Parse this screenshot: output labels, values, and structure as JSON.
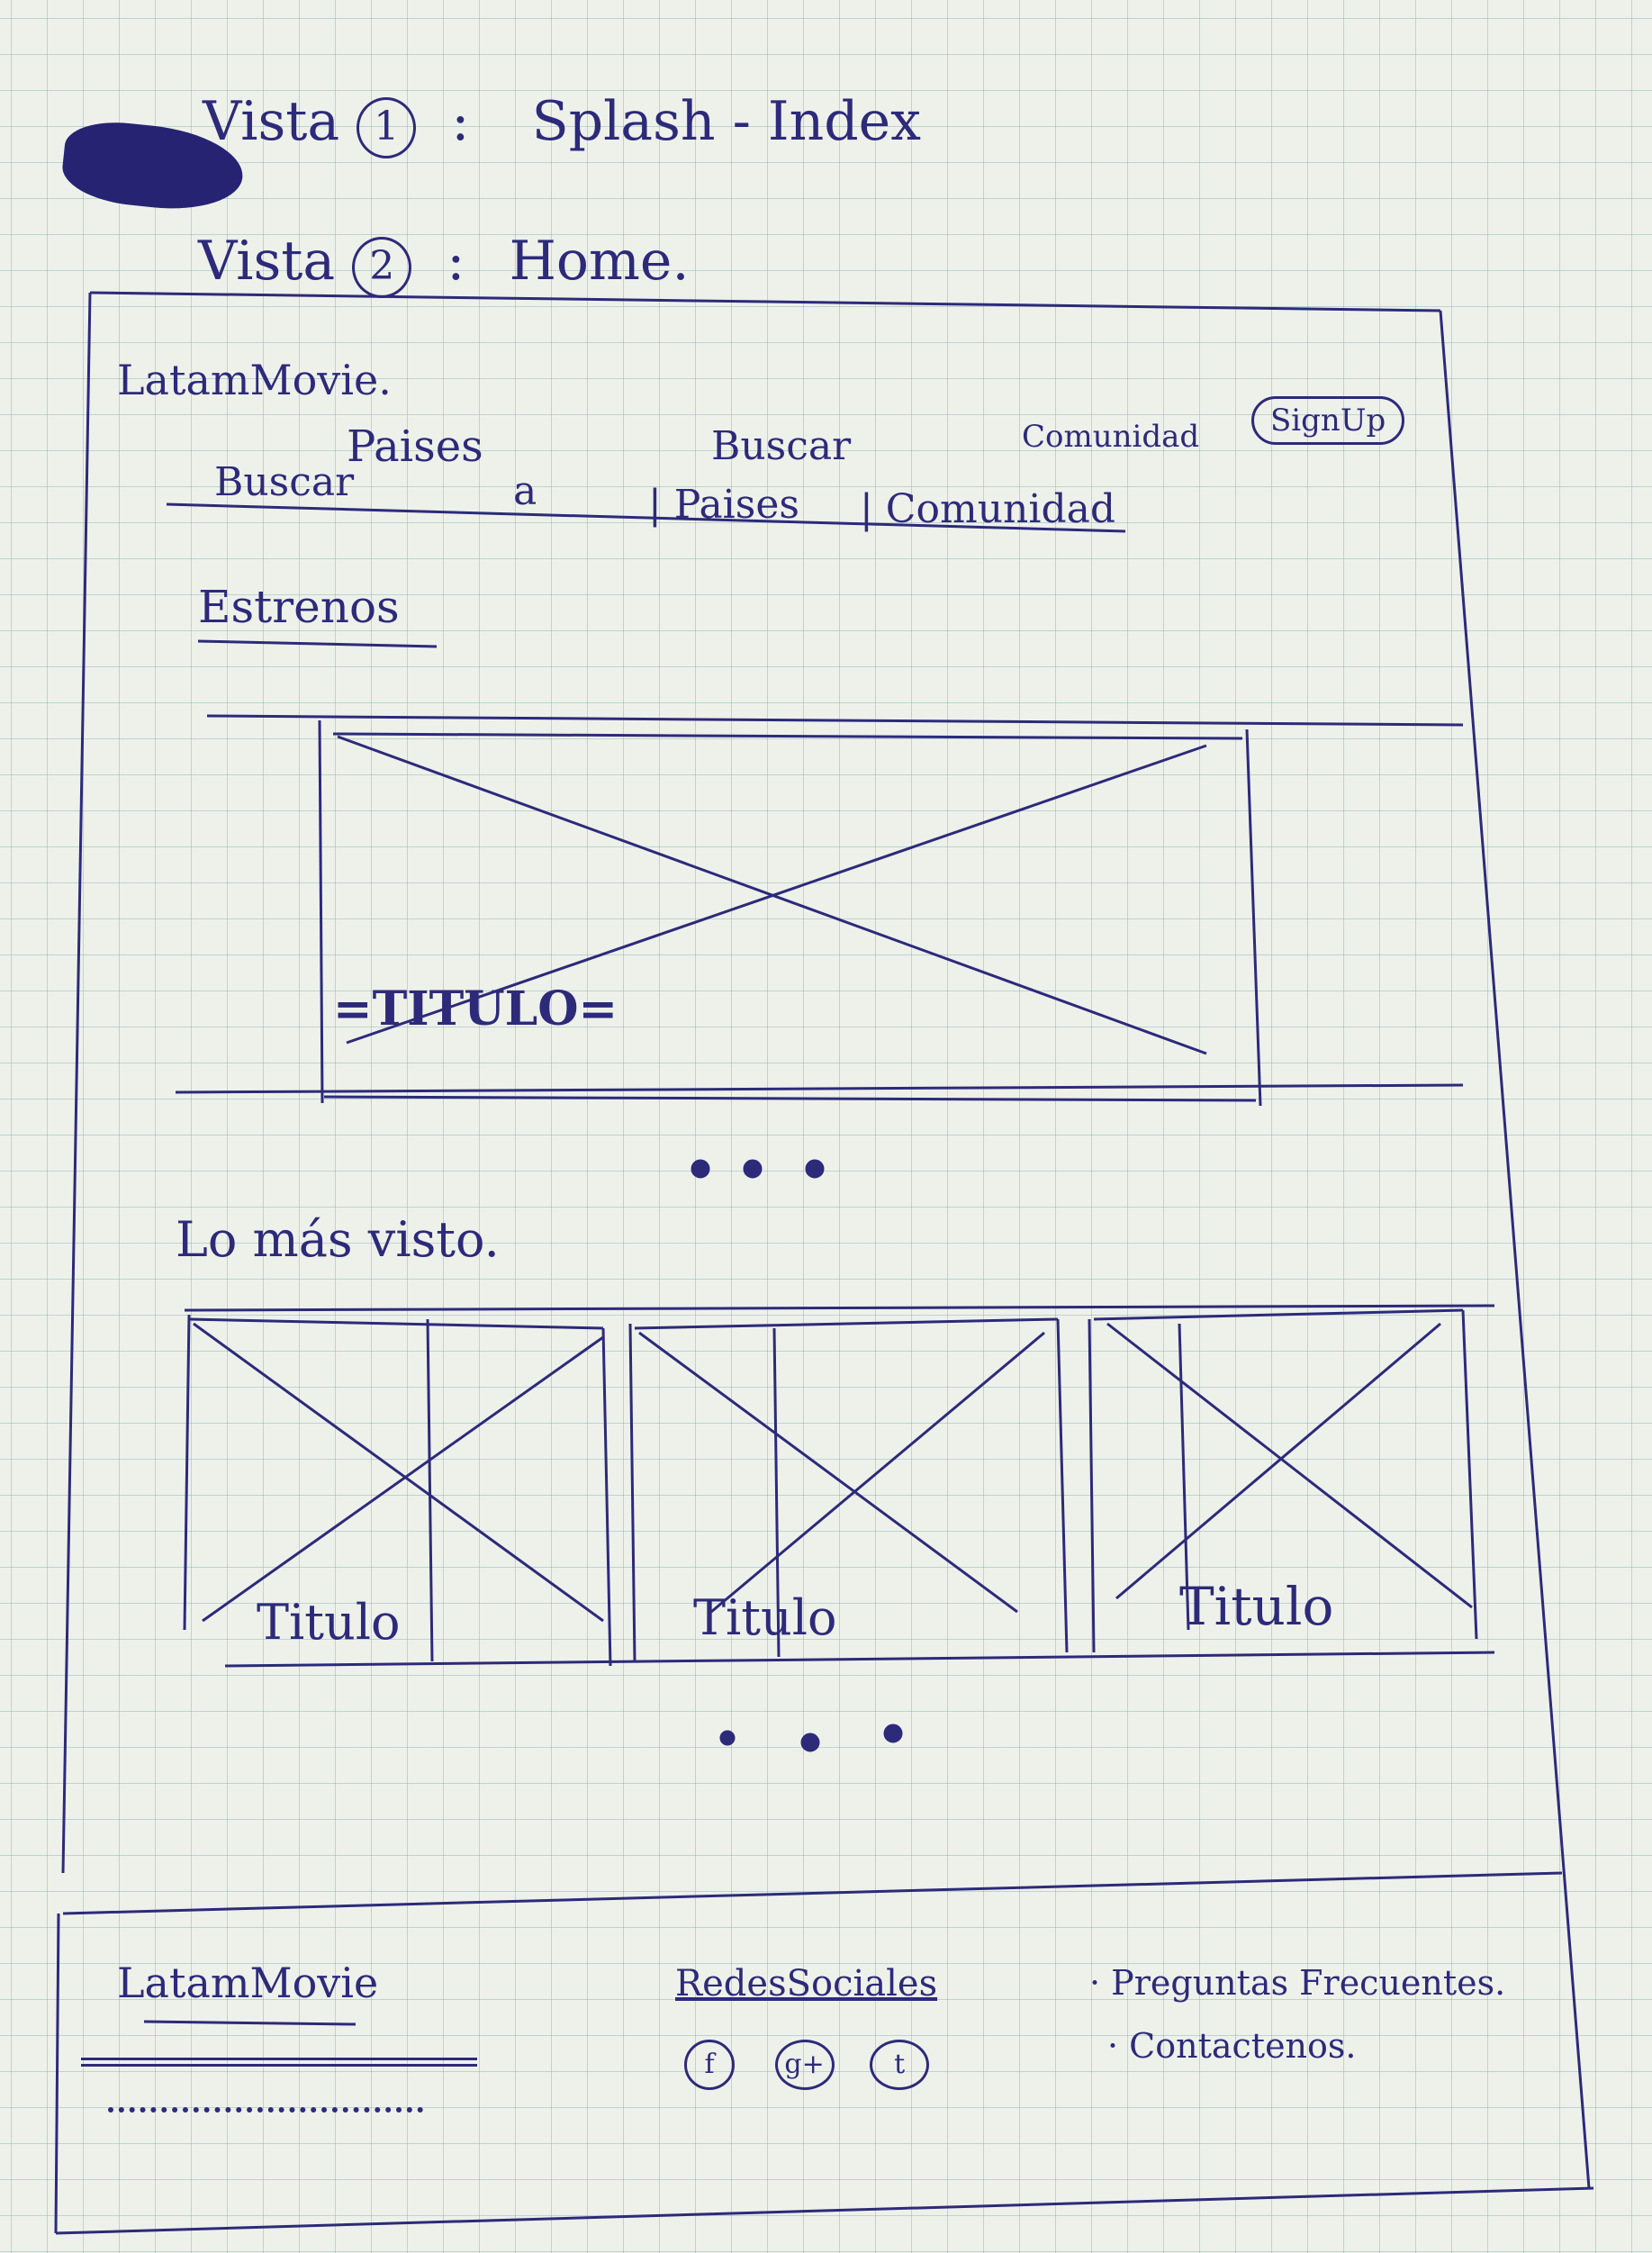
{
  "views": [
    {
      "word": "Vista",
      "number": "1",
      "separator": ":",
      "name": "Splash - Index"
    },
    {
      "word": "Vista",
      "number": "2",
      "separator": ":",
      "name": "Home."
    }
  ],
  "navbar": {
    "brand": "LatamMovie.",
    "top_links": [
      "Paises",
      "Buscar",
      "Comunidad"
    ],
    "signup": "SignUp",
    "search_placeholder": "Buscar",
    "search_icon_glyph": "a",
    "bottom_links": [
      "| Paises",
      "| Comunidad"
    ]
  },
  "sections": {
    "estrenos": {
      "title": "Estrenos",
      "slide_title": "=TITULO="
    },
    "lo_mas_visto": {
      "title": "Lo más visto.",
      "cards": [
        "Titulo",
        "Titulo",
        "Titulo"
      ]
    }
  },
  "footer": {
    "brand": "LatamMovie",
    "social_heading": "RedesSociales",
    "social_icons": [
      "f",
      "g+",
      "t"
    ],
    "links": [
      "· Preguntas Frecuentes.",
      "· Contactenos."
    ]
  },
  "colors": {
    "ink": "#2d2a7a",
    "paper": "#eef1ea",
    "grid": "#5aa0aa"
  }
}
